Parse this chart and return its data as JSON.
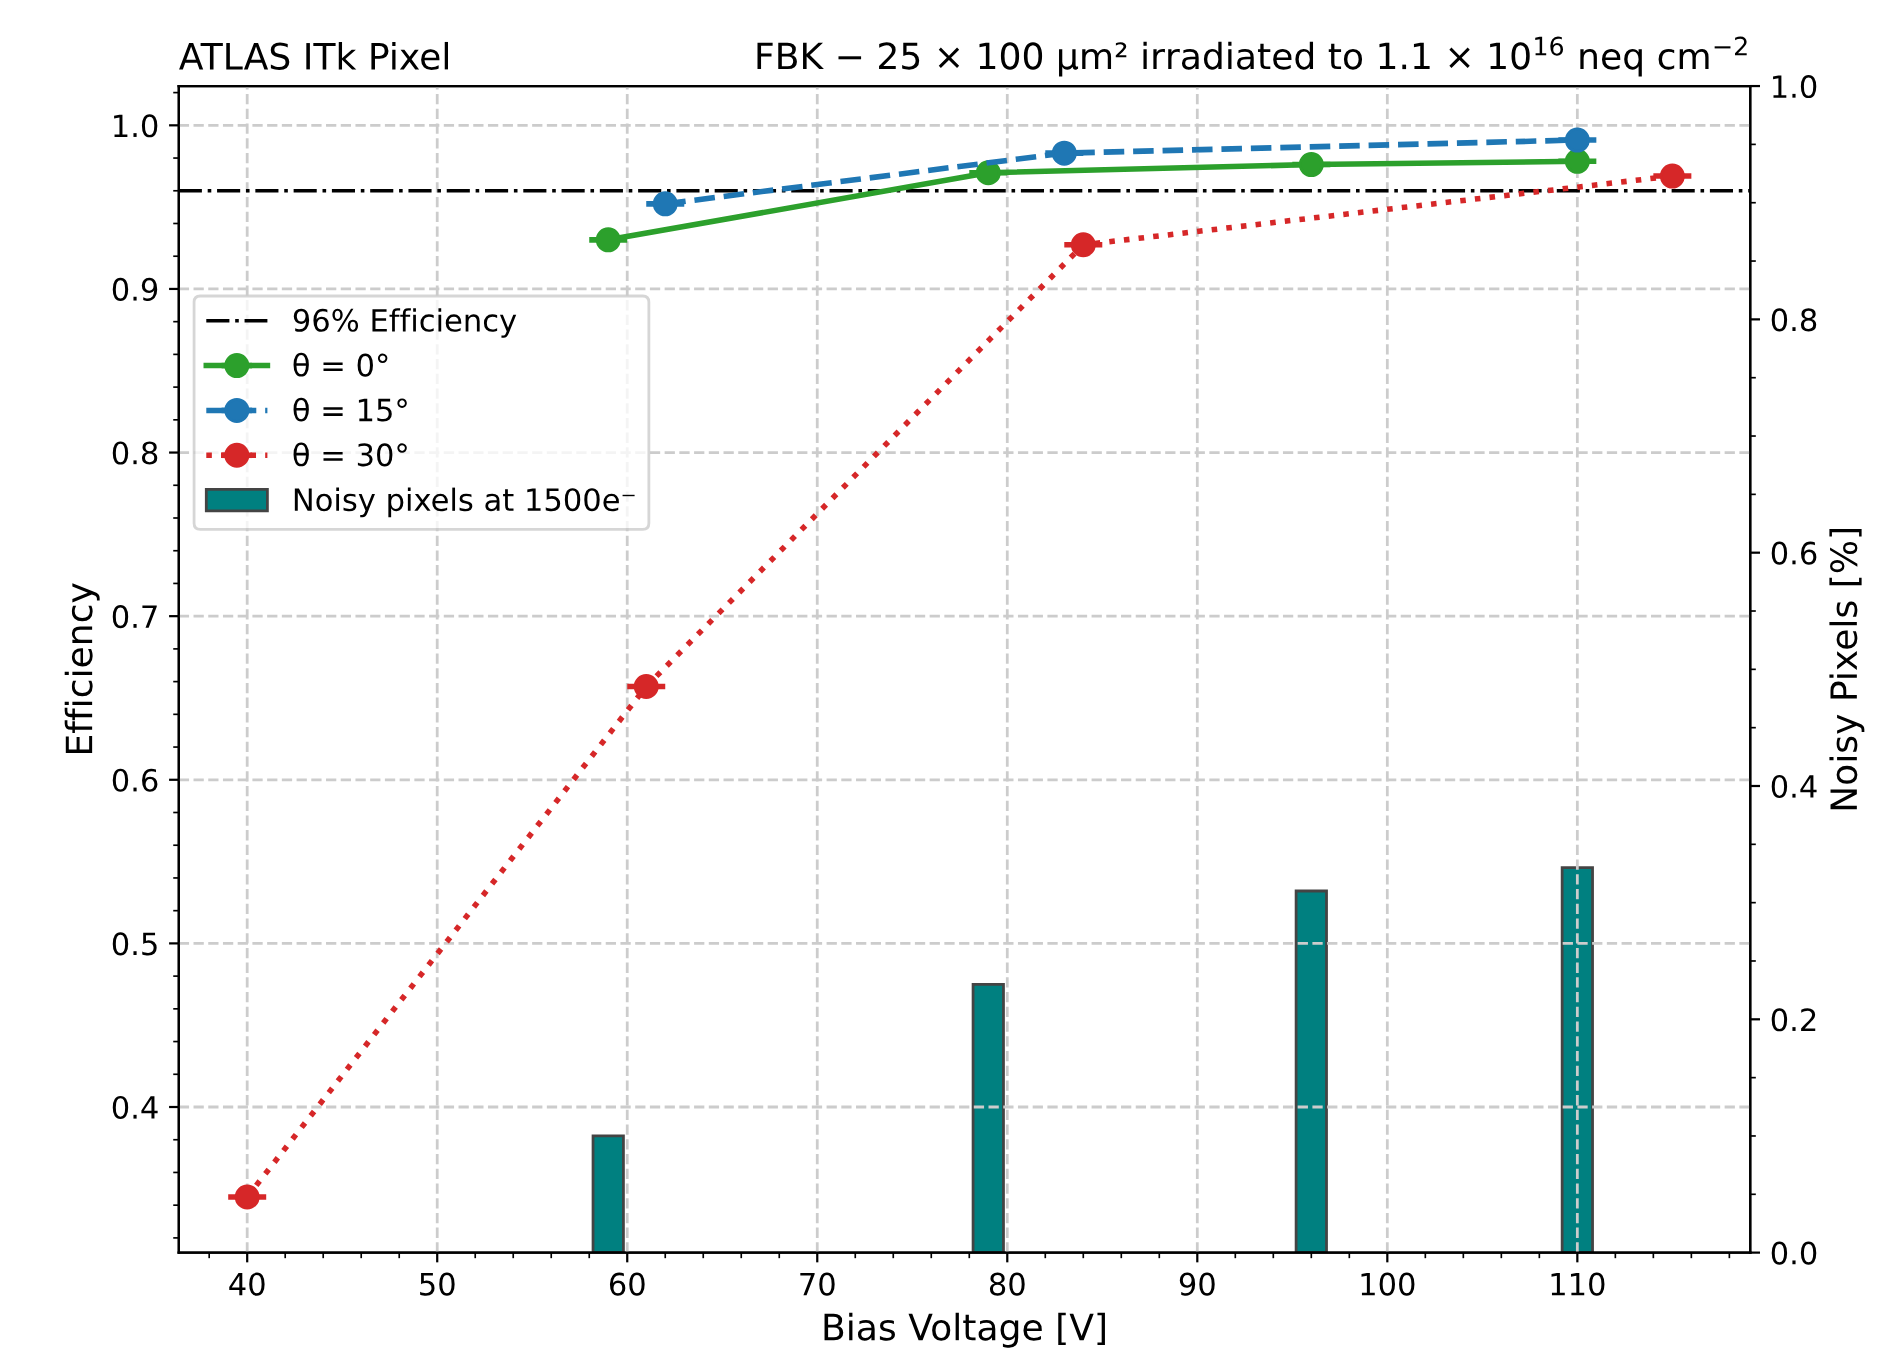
{
  "chart_data": {
    "type": "line",
    "title": "ATLAS ITk Pixel",
    "subtitle": "FBK − 25 × 100 μm² irradiated to 1.1 × 10$^{16}$ neq cm$^{−2}$",
    "xlabel": "Bias Voltage [V]",
    "ylabel": "Efficiency",
    "y2label": "Noisy Pixels [%]",
    "xlim": [
      36.4,
      119.1
    ],
    "xticks": [
      40,
      50,
      60,
      70,
      80,
      90,
      100,
      110
    ],
    "ylim": [
      0.311,
      1.024
    ],
    "yticks": [
      0.4,
      0.5,
      0.6,
      0.7,
      0.8,
      0.9,
      {
        "value": 1,
        "label": "1.0"
      }
    ],
    "y2lim": [
      0,
      1.0
    ],
    "y2ticks": [
      {
        "value": 0,
        "label": "0.0"
      },
      0.2,
      0.4,
      0.6,
      0.8,
      {
        "value": 1,
        "label": "1.0"
      }
    ],
    "grid": true,
    "legend": "left",
    "marker": "circle",
    "ref_lines": [
      {
        "axis": "y",
        "value": 0.96,
        "label": "96% Efficiency",
        "color": "#000000",
        "line_style": "dashdot"
      }
    ],
    "series": [
      {
        "name": "θ = 0°",
        "color": "#2ca02c",
        "line_style": "solid",
        "x": [
          59,
          79,
          96,
          110
        ],
        "values": [
          0.93,
          0.971,
          0.976,
          0.978
        ],
        "xerrors": [
          1,
          1,
          1,
          1
        ]
      },
      {
        "name": "θ = 15°",
        "color": "#1f77b4",
        "line_style": "dashed",
        "x": [
          62,
          83,
          110
        ],
        "values": [
          0.952,
          0.983,
          0.991
        ],
        "xerrors": [
          1,
          1,
          1
        ]
      },
      {
        "name": "θ = 30°",
        "color": "#d62728",
        "line_style": "dotted",
        "x": [
          40,
          61,
          84,
          115
        ],
        "values": [
          0.345,
          0.657,
          0.927,
          0.969
        ],
        "xerrors": [
          1,
          1,
          1,
          1
        ]
      },
      {
        "name": "Noisy pixels at 1500e⁻",
        "type": "bar",
        "axis": "y2",
        "color": "#008080",
        "x": [
          59,
          79,
          96,
          110
        ],
        "values": [
          0.1,
          0.23,
          0.31,
          0.33
        ]
      }
    ]
  }
}
